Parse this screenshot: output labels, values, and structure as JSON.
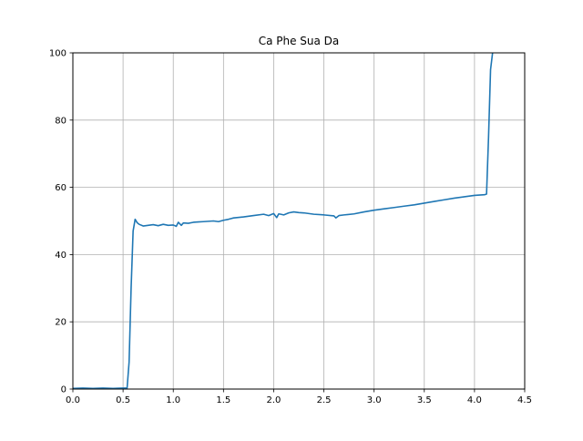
{
  "chart_data": {
    "type": "line",
    "title": "Ca Phe Sua Da",
    "xlabel": "",
    "ylabel": "",
    "xlim": [
      0,
      4.5
    ],
    "ylim": [
      0,
      100
    ],
    "grid": true,
    "xticks": [
      0.0,
      0.5,
      1.0,
      1.5,
      2.0,
      2.5,
      3.0,
      3.5,
      4.0,
      4.5
    ],
    "xtick_labels": [
      "0.0",
      "0.5",
      "1.0",
      "1.5",
      "2.0",
      "2.5",
      "3.0",
      "3.5",
      "4.0",
      "4.5"
    ],
    "yticks": [
      0,
      20,
      40,
      60,
      80,
      100
    ],
    "ytick_labels": [
      "0",
      "20",
      "40",
      "60",
      "80",
      "100"
    ],
    "series": [
      {
        "color": "#1f77b4",
        "x": [
          0.0,
          0.1,
          0.2,
          0.3,
          0.4,
          0.5,
          0.54,
          0.56,
          0.58,
          0.6,
          0.62,
          0.64,
          0.66,
          0.7,
          0.75,
          0.8,
          0.85,
          0.9,
          0.95,
          1.0,
          1.03,
          1.05,
          1.08,
          1.1,
          1.15,
          1.2,
          1.25,
          1.3,
          1.35,
          1.4,
          1.45,
          1.5,
          1.55,
          1.6,
          1.7,
          1.8,
          1.9,
          1.95,
          2.0,
          2.03,
          2.05,
          2.07,
          2.1,
          2.15,
          2.2,
          2.25,
          2.3,
          2.4,
          2.5,
          2.6,
          2.62,
          2.65,
          2.7,
          2.8,
          2.9,
          3.0,
          3.1,
          3.2,
          3.3,
          3.4,
          3.5,
          3.6,
          3.7,
          3.8,
          3.9,
          4.0,
          4.1,
          4.12,
          4.14,
          4.16,
          4.18
        ],
        "y": [
          0.2,
          0.3,
          0.2,
          0.3,
          0.2,
          0.3,
          0.3,
          8.0,
          30.0,
          47.0,
          50.5,
          49.5,
          49.0,
          48.5,
          48.7,
          48.9,
          48.6,
          49.0,
          48.7,
          48.8,
          48.4,
          49.6,
          48.7,
          49.4,
          49.3,
          49.6,
          49.7,
          49.8,
          49.9,
          50.0,
          49.8,
          50.2,
          50.5,
          50.9,
          51.2,
          51.6,
          52.0,
          51.6,
          52.2,
          51.0,
          52.1,
          52.0,
          51.8,
          52.4,
          52.7,
          52.5,
          52.4,
          52.0,
          51.8,
          51.5,
          50.9,
          51.6,
          51.8,
          52.1,
          52.7,
          53.2,
          53.6,
          54.0,
          54.4,
          54.8,
          55.3,
          55.8,
          56.3,
          56.8,
          57.2,
          57.6,
          57.8,
          58.0,
          75.0,
          95.0,
          100.0
        ]
      }
    ]
  }
}
